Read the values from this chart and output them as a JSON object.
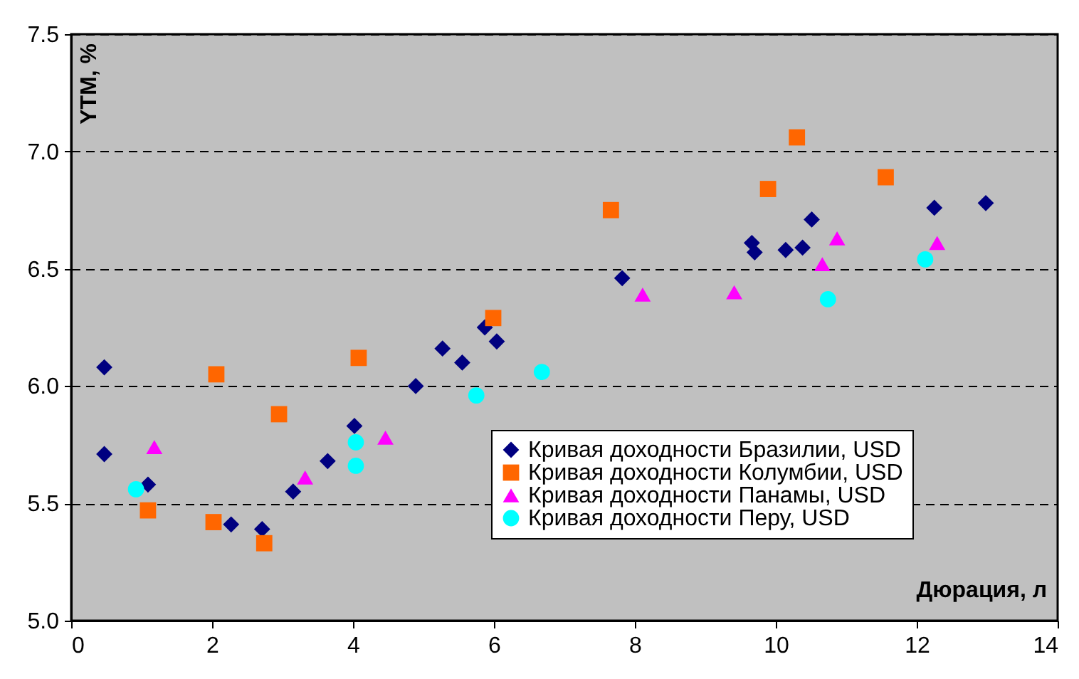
{
  "chart_data": {
    "type": "scatter",
    "xlabel": "Дюрация, л",
    "ylabel": "YTM, %",
    "xlim": [
      0,
      14
    ],
    "xticks": [
      0,
      2,
      4,
      6,
      8,
      10,
      12,
      14
    ],
    "ylim": [
      5.0,
      7.5
    ],
    "yticks": [
      {
        "value": 5,
        "label": "5.0"
      },
      {
        "value": 5.5,
        "label": "5.5"
      },
      {
        "value": 6,
        "label": "6.0"
      },
      {
        "value": 6.5,
        "label": "6.5"
      },
      {
        "value": 7,
        "label": "7.0"
      },
      {
        "value": 7.5,
        "label": "7.5"
      }
    ],
    "grid": "y",
    "legend": "bottom right",
    "series": [
      {
        "name": "Кривая доходности Бразилии, USD",
        "color": "#000080",
        "marker": "diamond",
        "x": [
          0.47,
          0.47,
          1.09,
          2.27,
          2.71,
          3.15,
          3.64,
          4.02,
          4.89,
          5.27,
          5.55,
          5.87,
          6.04,
          7.82,
          9.66,
          9.7,
          10.14,
          10.38,
          10.51,
          12.25,
          12.98
        ],
        "values": [
          6.08,
          5.71,
          5.58,
          5.41,
          5.39,
          5.55,
          5.68,
          5.83,
          6.0,
          6.16,
          6.1,
          6.25,
          6.19,
          6.46,
          6.61,
          6.57,
          6.58,
          6.59,
          6.71,
          6.76,
          6.78
        ]
      },
      {
        "name": "Кривая доходности Колумбии, USD",
        "color": "#ff6600",
        "marker": "square",
        "x": [
          1.09,
          2.06,
          2.02,
          2.95,
          2.74,
          4.08,
          5.99,
          7.66,
          9.89,
          10.3,
          11.56
        ],
        "values": [
          5.47,
          6.05,
          5.42,
          5.88,
          5.33,
          6.12,
          6.29,
          6.75,
          6.84,
          7.06,
          6.89
        ]
      },
      {
        "name": "Кривая доходности Панамы, USD",
        "color": "#ff00ff",
        "marker": "triangle",
        "x": [
          1.18,
          3.32,
          4.46,
          8.11,
          9.41,
          10.66,
          10.87,
          12.29
        ],
        "values": [
          5.74,
          5.61,
          5.78,
          6.39,
          6.4,
          6.52,
          6.63,
          6.61
        ]
      },
      {
        "name": "Кривая доходности Перу, USD",
        "color": "#00ffff",
        "marker": "circle",
        "x": [
          0.92,
          4.04,
          4.04,
          5.75,
          6.68,
          10.74,
          12.12
        ],
        "values": [
          5.56,
          5.76,
          5.66,
          5.96,
          6.06,
          6.37,
          6.54
        ]
      }
    ]
  }
}
